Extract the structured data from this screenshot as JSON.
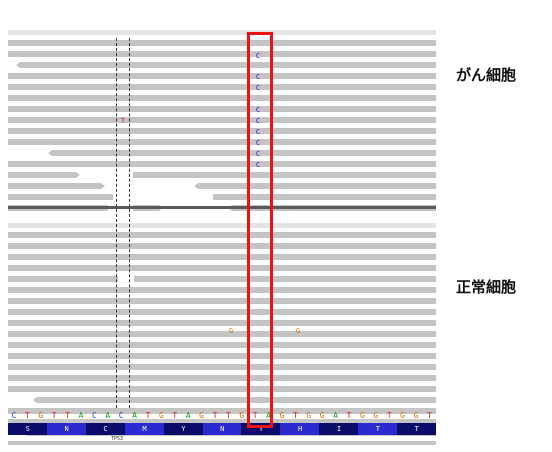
{
  "labels": {
    "cancer_cells": "がん細胞",
    "normal_cells": "正常細胞"
  },
  "colors": {
    "read": "#c4c4c4",
    "variant_c": "#2222cc",
    "variant_t": "#dd2222",
    "variant_g": "#cc7a00",
    "highlight": "#ee1111",
    "nt_A": "#1a9e1a",
    "nt_C": "#1f3fd6",
    "nt_G": "#c87400",
    "nt_T": "#dd1f1f",
    "aa_dark": "#0b0b6b",
    "aa_light": "#2a2ad0"
  },
  "tumor_mismatches": [
    "C",
    "C",
    "C",
    "C",
    "C",
    "C",
    "C",
    "C",
    "C",
    "C"
  ],
  "tumor_other_mismatches": [
    "T"
  ],
  "normal_mismatches": [
    "G",
    "G"
  ],
  "reference_sequence": [
    "C",
    "T",
    "G",
    "T",
    "T",
    "A",
    "C",
    "A",
    "C",
    "A",
    "T",
    "G",
    "T",
    "A",
    "G",
    "T",
    "T",
    "G",
    "T",
    "A",
    "G",
    "T",
    "G",
    "G",
    "A",
    "T",
    "G",
    "G",
    "T",
    "G",
    "G",
    "T"
  ],
  "amino_acids": [
    "S",
    "N",
    "C",
    "M",
    "Y",
    "N",
    "Y",
    "H",
    "I",
    "T",
    "T"
  ],
  "gene_label": "TP53"
}
